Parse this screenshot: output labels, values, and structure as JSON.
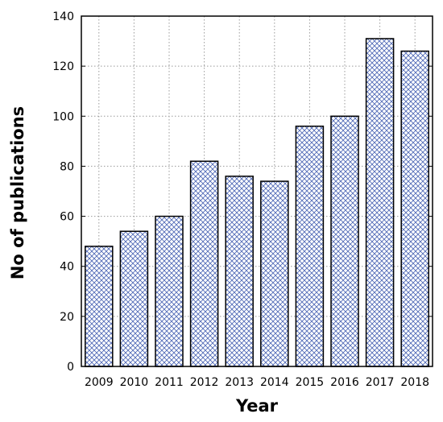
{
  "chart_data": {
    "type": "bar",
    "title": "",
    "xlabel": "Year",
    "ylabel": "No of publications",
    "categories": [
      "2009",
      "2010",
      "2011",
      "2012",
      "2013",
      "2014",
      "2015",
      "2016",
      "2017",
      "2018"
    ],
    "values": [
      48,
      54,
      60,
      82,
      76,
      74,
      96,
      100,
      131,
      126
    ],
    "ylim": [
      0,
      140
    ],
    "yticks": [
      0,
      20,
      40,
      60,
      80,
      100,
      120,
      140
    ],
    "grid": true,
    "legend": "none",
    "bar_fill": "crosshatch",
    "colors": {
      "hatch": "#4a64b4",
      "bar_outline": "#000000",
      "grid": "#9a9a9a",
      "axis": "#000000"
    }
  }
}
